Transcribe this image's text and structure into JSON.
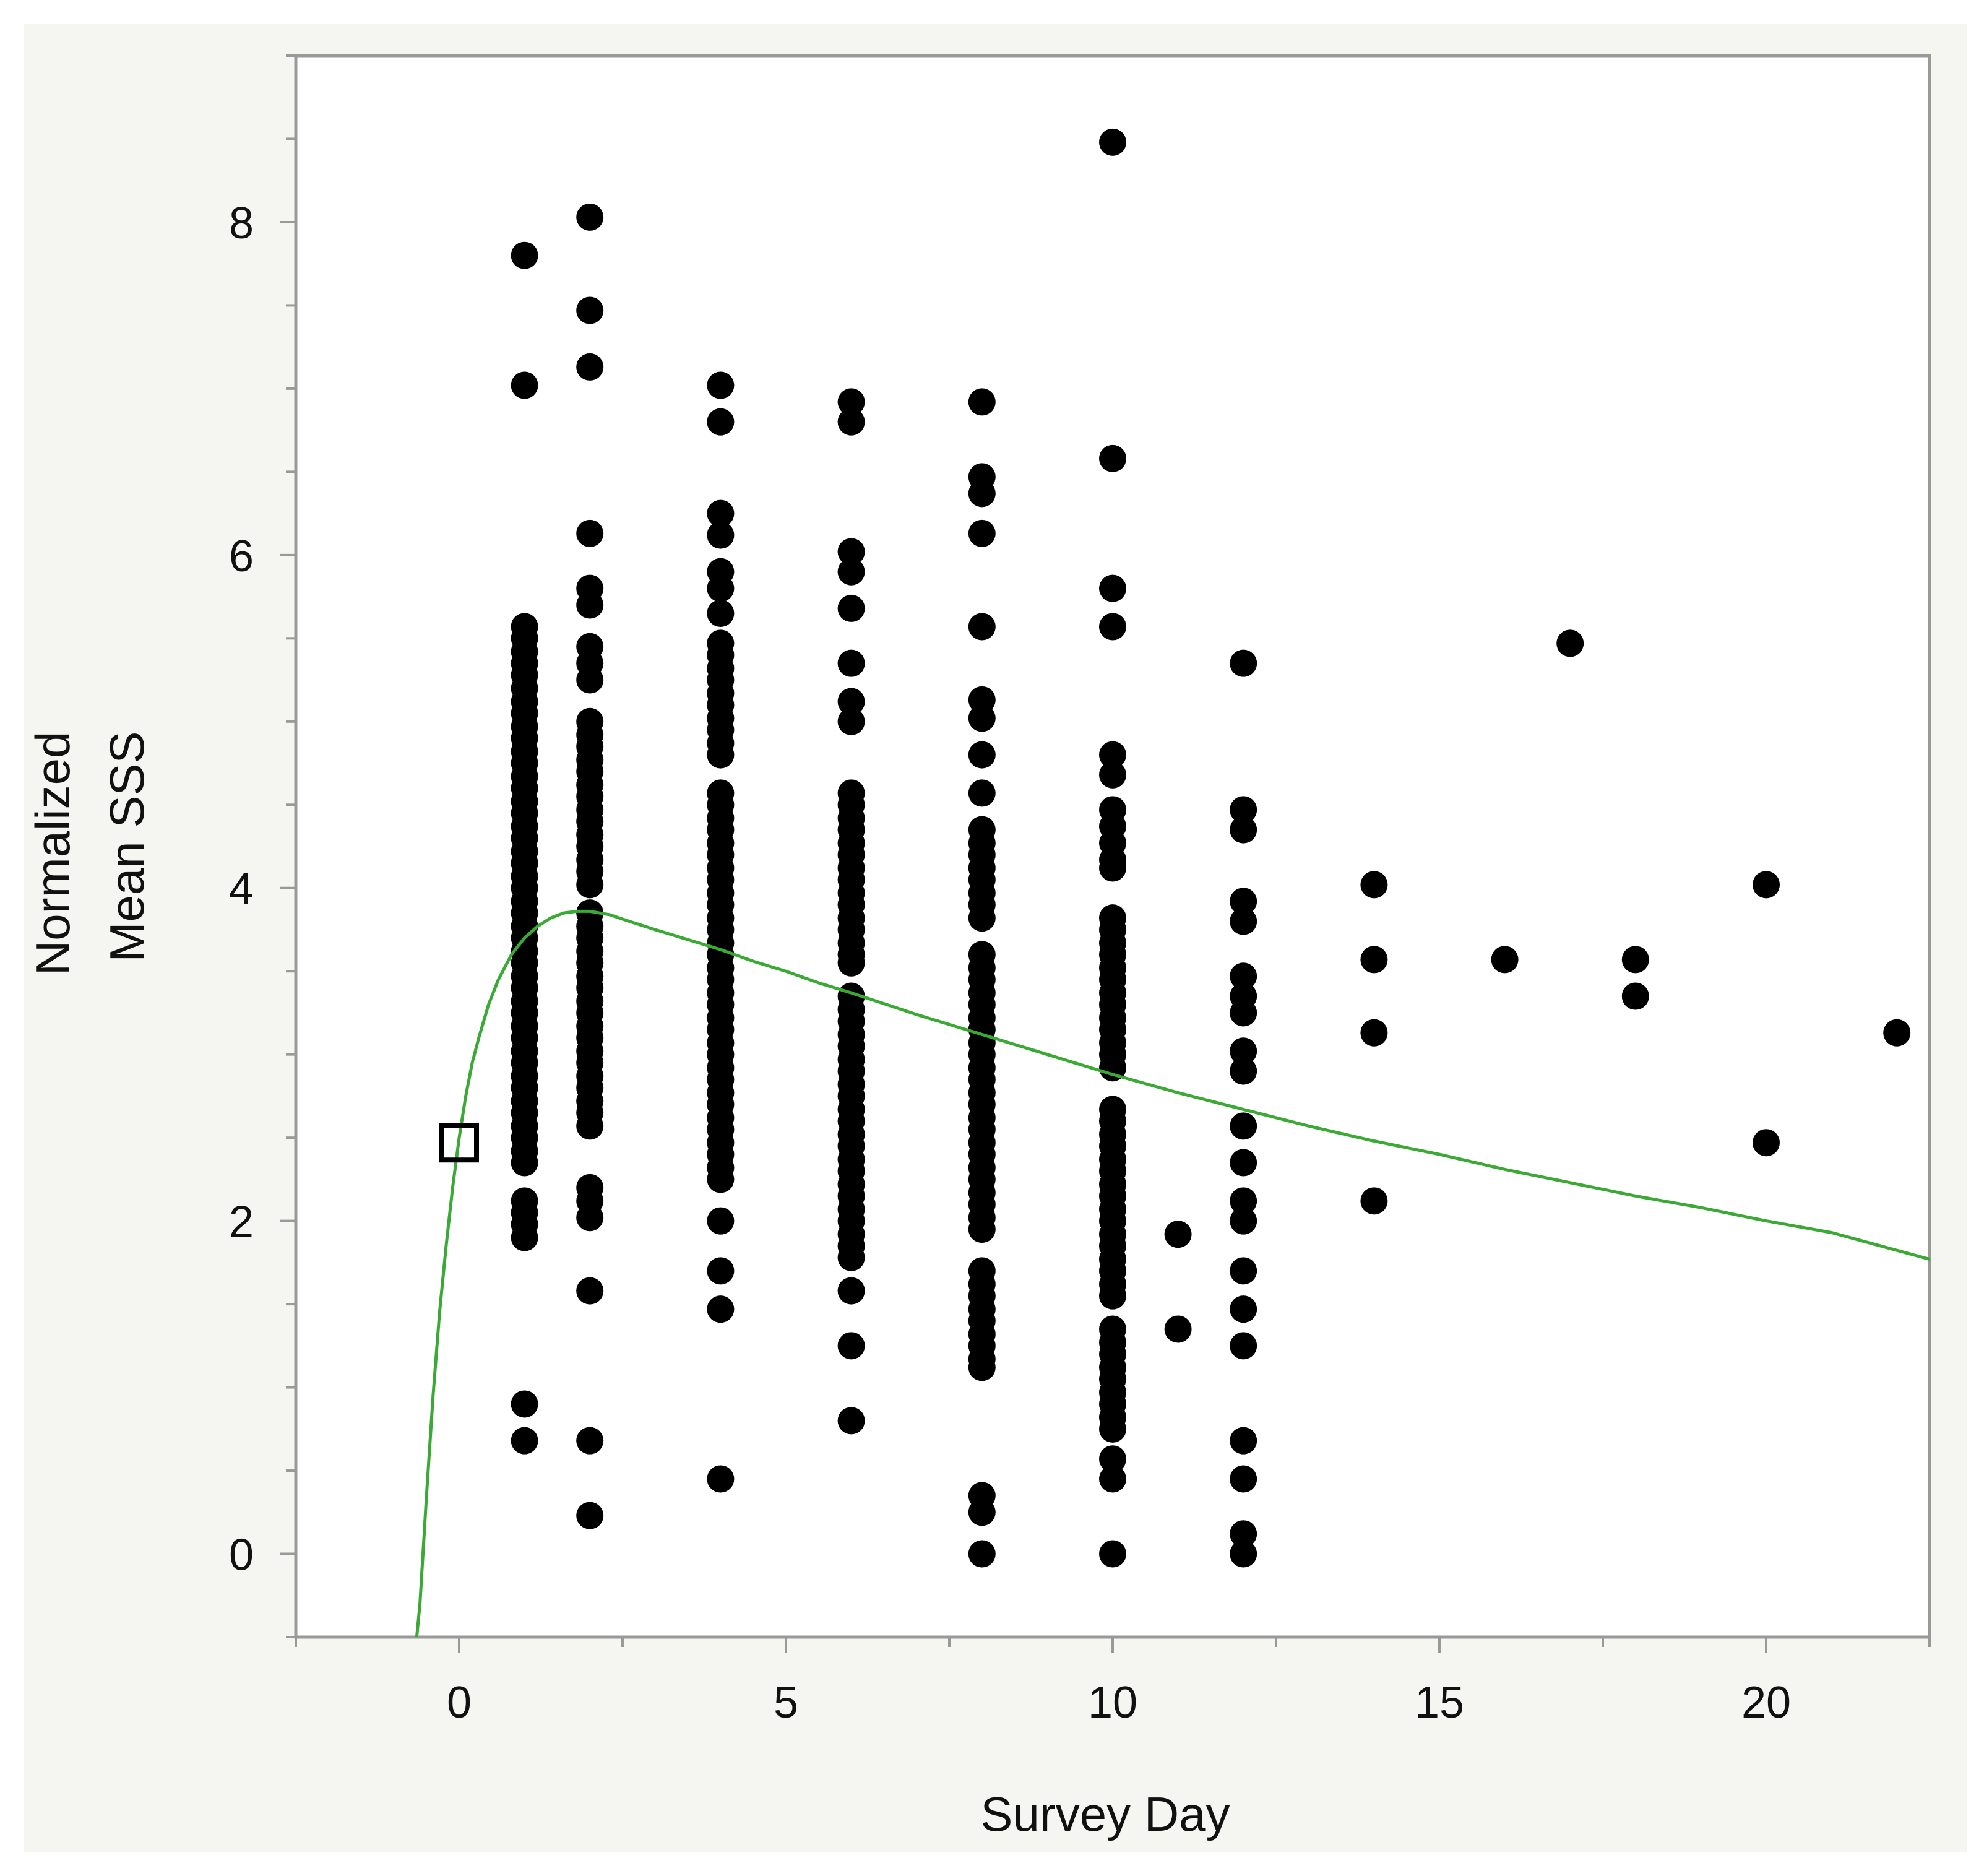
{
  "chart_data": {
    "type": "scatter",
    "title": "",
    "xlabel": "Survey Day",
    "ylabel_lines": [
      "Normalized",
      "Mean SSS"
    ],
    "xlim": [
      -2.5,
      22.5
    ],
    "ylim": [
      -0.5,
      9.0
    ],
    "x_ticks": [
      0,
      5,
      10,
      15,
      20
    ],
    "x_tick_labels": [
      "0",
      "5",
      "10",
      "15",
      "20"
    ],
    "x_minor_step": 2.5,
    "y_ticks": [
      0,
      2,
      4,
      6,
      8
    ],
    "y_tick_labels": [
      "0",
      "2",
      "4",
      "6",
      "8"
    ],
    "y_minor_step": 0.5,
    "grid": false,
    "colors": {
      "points": "#000000",
      "curve": "#3aaa35",
      "frame": "#f5f5f1",
      "plot_bg": "#ffffff",
      "axis": "#999999"
    },
    "series": [
      {
        "name": "observations",
        "kind": "points",
        "groups": [
          {
            "x": 1,
            "y": [
              7.8,
              7.02,
              5.57,
              5.5,
              5.42,
              5.35,
              5.28,
              5.2,
              5.12,
              5.05,
              4.97,
              4.9,
              4.82,
              4.75,
              4.67,
              4.6,
              4.52,
              4.45,
              4.37,
              4.3,
              4.22,
              4.15,
              4.07,
              4.0,
              3.92,
              3.85,
              3.77,
              3.7,
              3.62,
              3.55,
              3.47,
              3.4,
              3.32,
              3.25,
              3.17,
              3.1,
              3.02,
              2.95,
              2.87,
              2.8,
              2.72,
              2.65,
              2.57,
              2.5,
              2.42,
              2.35,
              2.12,
              2.05,
              1.98,
              1.9,
              0.9,
              0.68
            ]
          },
          {
            "x": 2,
            "y": [
              8.03,
              7.47,
              7.13,
              6.13,
              5.8,
              5.7,
              5.45,
              5.35,
              5.25,
              5.0,
              4.92,
              4.85,
              4.77,
              4.7,
              4.62,
              4.55,
              4.47,
              4.4,
              4.32,
              4.25,
              4.17,
              4.1,
              4.02,
              3.85,
              3.77,
              3.7,
              3.62,
              3.55,
              3.47,
              3.4,
              3.32,
              3.25,
              3.17,
              3.1,
              3.02,
              2.95,
              2.87,
              2.8,
              2.72,
              2.65,
              2.57,
              2.2,
              2.12,
              2.02,
              1.58,
              0.68,
              0.23
            ]
          },
          {
            "x": 4,
            "y": [
              7.02,
              6.8,
              6.25,
              6.12,
              5.9,
              5.8,
              5.65,
              5.47,
              5.4,
              5.32,
              5.25,
              5.17,
              5.1,
              5.02,
              4.95,
              4.87,
              4.8,
              4.57,
              4.5,
              4.42,
              4.35,
              4.27,
              4.2,
              4.12,
              4.05,
              3.97,
              3.9,
              3.82,
              3.75,
              3.67,
              3.6,
              3.52,
              3.45,
              3.37,
              3.3,
              3.22,
              3.15,
              3.07,
              3.0,
              2.92,
              2.85,
              2.77,
              2.7,
              2.62,
              2.55,
              2.47,
              2.4,
              2.32,
              2.25,
              2.0,
              1.7,
              1.47,
              0.45
            ]
          },
          {
            "x": 6,
            "y": [
              6.92,
              6.8,
              6.02,
              5.9,
              5.68,
              5.35,
              5.12,
              5.0,
              4.57,
              4.5,
              4.42,
              4.35,
              4.27,
              4.2,
              4.12,
              4.05,
              3.97,
              3.9,
              3.82,
              3.75,
              3.67,
              3.6,
              3.55,
              3.35,
              3.27,
              3.2,
              3.12,
              3.05,
              2.97,
              2.9,
              2.82,
              2.75,
              2.67,
              2.6,
              2.52,
              2.45,
              2.37,
              2.3,
              2.22,
              2.15,
              2.07,
              2.0,
              1.92,
              1.85,
              1.78,
              1.58,
              1.25,
              0.8
            ]
          },
          {
            "x": 8,
            "y": [
              6.92,
              6.47,
              6.37,
              6.13,
              5.57,
              5.13,
              5.02,
              4.8,
              4.57,
              4.35,
              4.27,
              4.2,
              4.12,
              4.05,
              3.97,
              3.9,
              3.82,
              3.6,
              3.52,
              3.45,
              3.37,
              3.3,
              3.22,
              3.15,
              3.07,
              3.0,
              2.92,
              2.85,
              2.77,
              2.7,
              2.62,
              2.55,
              2.47,
              2.4,
              2.32,
              2.25,
              2.17,
              2.1,
              2.02,
              1.95,
              1.7,
              1.62,
              1.55,
              1.47,
              1.4,
              1.32,
              1.25,
              1.17,
              1.12,
              0.35,
              0.25,
              0.0
            ]
          },
          {
            "x": 10,
            "y": [
              8.48,
              6.58,
              5.8,
              5.57,
              4.8,
              4.68,
              4.47,
              4.37,
              4.27,
              4.17,
              4.12,
              3.82,
              3.75,
              3.67,
              3.6,
              3.52,
              3.45,
              3.37,
              3.3,
              3.22,
              3.15,
              3.07,
              3.0,
              2.92,
              2.67,
              2.6,
              2.52,
              2.45,
              2.37,
              2.3,
              2.22,
              2.15,
              2.07,
              2.0,
              1.92,
              1.85,
              1.77,
              1.7,
              1.62,
              1.55,
              1.35,
              1.27,
              1.2,
              1.12,
              1.05,
              0.97,
              0.9,
              0.82,
              0.75,
              0.57,
              0.45,
              0.0
            ]
          },
          {
            "x": 11,
            "y": [
              1.92,
              1.35
            ]
          },
          {
            "x": 12,
            "y": [
              5.35,
              4.47,
              4.35,
              3.92,
              3.8,
              3.47,
              3.35,
              3.25,
              3.02,
              2.9,
              2.57,
              2.35,
              2.12,
              2.0,
              1.7,
              1.47,
              1.25,
              0.68,
              0.45,
              0.12,
              0.0
            ]
          },
          {
            "x": 14,
            "y": [
              4.02,
              3.57,
              3.13,
              2.12
            ]
          },
          {
            "x": 16,
            "y": [
              3.57
            ]
          },
          {
            "x": 17,
            "y": [
              5.47
            ]
          },
          {
            "x": 18,
            "y": [
              3.57,
              3.35
            ]
          },
          {
            "x": 20,
            "y": [
              4.02,
              2.47
            ]
          },
          {
            "x": 22,
            "y": [
              3.13
            ]
          }
        ]
      },
      {
        "name": "fitted curve",
        "kind": "line",
        "x": [
          -0.65,
          -0.6,
          -0.5,
          -0.4,
          -0.3,
          -0.2,
          -0.1,
          0.0,
          0.1,
          0.2,
          0.3,
          0.45,
          0.6,
          0.8,
          1.0,
          1.2,
          1.4,
          1.6,
          1.8,
          2.0,
          2.3,
          2.6,
          3.0,
          3.5,
          4.0,
          4.5,
          5.0,
          5.5,
          6.0,
          7.0,
          8.0,
          9.0,
          10.0,
          11.0,
          12.0,
          13.0,
          14.0,
          15.0,
          16.0,
          17.0,
          18.0,
          19.0,
          20.0,
          21.0,
          22.5
        ],
        "y": [
          -0.5,
          -0.3,
          0.35,
          0.95,
          1.45,
          1.85,
          2.2,
          2.5,
          2.75,
          2.95,
          3.1,
          3.3,
          3.45,
          3.6,
          3.7,
          3.77,
          3.82,
          3.85,
          3.86,
          3.86,
          3.84,
          3.8,
          3.75,
          3.69,
          3.63,
          3.56,
          3.5,
          3.43,
          3.37,
          3.24,
          3.12,
          3.0,
          2.88,
          2.77,
          2.67,
          2.57,
          2.48,
          2.4,
          2.31,
          2.23,
          2.15,
          2.08,
          2.0,
          1.93,
          1.77
        ]
      },
      {
        "name": "baseline",
        "kind": "hollow-square",
        "x": 0,
        "y": 2.47
      }
    ]
  }
}
